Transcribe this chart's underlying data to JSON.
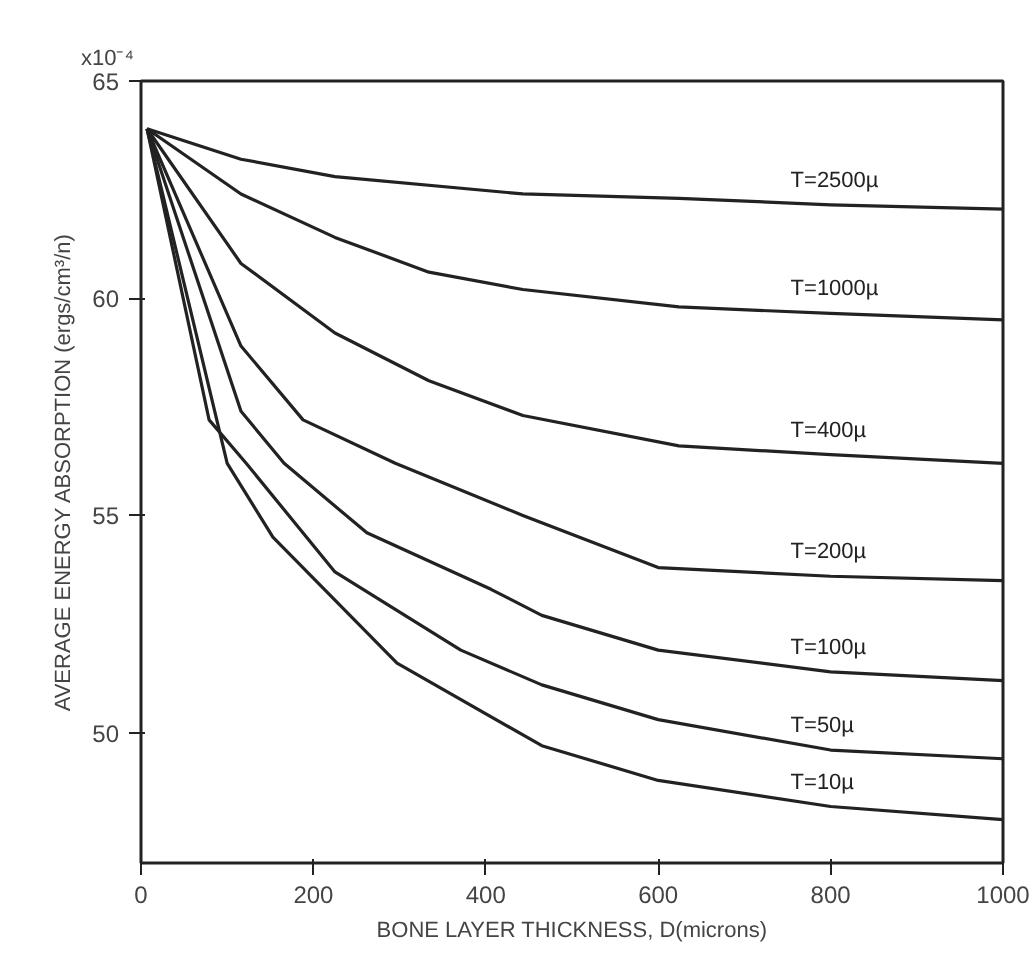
{
  "chart_data": {
    "type": "line",
    "xlabel": "BONE LAYER THICKNESS, D(microns)",
    "ylabel": "AVERAGE ENERGY ABSORPTION (ergs/cm³/n)",
    "annotations": [
      "x10⁻⁴"
    ],
    "xlim": [
      0,
      1000
    ],
    "ylim": [
      47,
      65
    ],
    "xticks": [
      0,
      200,
      400,
      600,
      800,
      1000
    ],
    "yticks": [
      50,
      55,
      60,
      65
    ],
    "grid": false,
    "marker": "none",
    "line_style": "solid",
    "series": [
      {
        "name": "T=2500µ",
        "color": "#222222",
        "x": [
          7,
          116,
          225,
          443,
          624,
          800,
          1000
        ],
        "values": [
          63.9,
          63.2,
          62.8,
          62.4,
          62.3,
          62.15,
          62.05
        ]
      },
      {
        "name": "T=1000µ",
        "color": "#222222",
        "x": [
          7,
          116,
          225,
          334,
          443,
          624,
          800,
          1000
        ],
        "values": [
          63.9,
          62.4,
          61.4,
          60.6,
          60.2,
          59.8,
          59.65,
          59.5
        ]
      },
      {
        "name": "T=400µ",
        "color": "#222222",
        "x": [
          7,
          116,
          225,
          334,
          443,
          624,
          800,
          1000
        ],
        "values": [
          63.9,
          60.8,
          59.2,
          58.1,
          57.3,
          56.6,
          56.4,
          56.2
        ]
      },
      {
        "name": "T=200µ",
        "color": "#222222",
        "x": [
          7,
          116,
          188,
          295,
          443,
          600,
          800,
          1000
        ],
        "values": [
          63.9,
          58.9,
          57.2,
          56.2,
          55.0,
          53.8,
          53.6,
          53.5
        ]
      },
      {
        "name": "T=100µ",
        "color": "#222222",
        "x": [
          7,
          116,
          166,
          262,
          406,
          465,
          600,
          800,
          1000
        ],
        "values": [
          63.9,
          57.4,
          56.2,
          54.6,
          53.3,
          52.7,
          51.9,
          51.4,
          51.2
        ]
      },
      {
        "name": "T=50µ",
        "color": "#222222",
        "x": [
          7,
          79,
          122,
          225,
          371,
          465,
          600,
          800,
          1000
        ],
        "values": [
          63.9,
          57.2,
          56.2,
          53.7,
          51.9,
          51.1,
          50.3,
          49.6,
          49.4
        ]
      },
      {
        "name": "T=10µ",
        "color": "#222222",
        "x": [
          7,
          100,
          153,
          297,
          465,
          600,
          800,
          1000
        ],
        "values": [
          63.9,
          56.2,
          54.5,
          51.6,
          49.7,
          48.9,
          48.3,
          48.0
        ]
      }
    ]
  }
}
